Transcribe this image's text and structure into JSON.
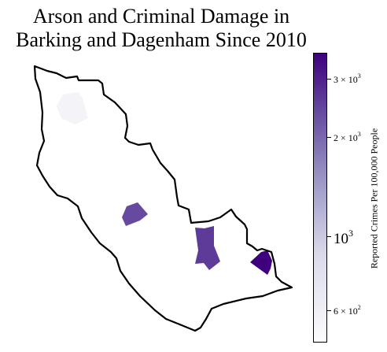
{
  "title": {
    "line1": "Arson and Criminal Damage in",
    "line2": "Barking and Dagenham Since 2010"
  },
  "colorbar": {
    "label": "Reported Crimes Per 100,000 People",
    "scale": "log",
    "colormap": "Purples",
    "range": [
      480,
      3600
    ],
    "ticks": [
      {
        "value": 3000,
        "mantissa": "3 × 10",
        "exponent": "3",
        "size": "small"
      },
      {
        "value": 2000,
        "mantissa": "2 × 10",
        "exponent": "3",
        "size": "small"
      },
      {
        "value": 1000,
        "mantissa": "10",
        "exponent": "3",
        "size": "big"
      },
      {
        "value": 600,
        "mantissa": "6 × 10",
        "exponent": "2",
        "size": "small"
      }
    ]
  },
  "map": {
    "borough": "Barking and Dagenham",
    "regions": [
      {
        "name": "northwest-area",
        "value": 560
      },
      {
        "name": "central-west-area",
        "value": 2400
      },
      {
        "name": "central-south-area",
        "value": 2600
      },
      {
        "name": "southeast-area",
        "value": 3600
      }
    ]
  }
}
